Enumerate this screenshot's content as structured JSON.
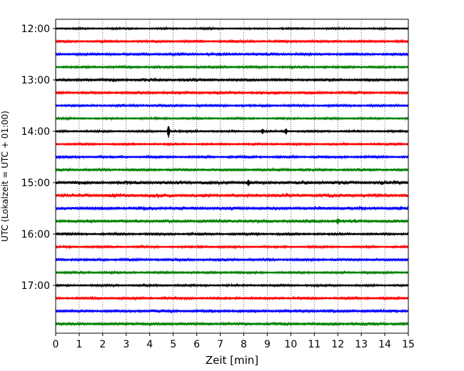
{
  "chart_data": {
    "type": "line",
    "title": "",
    "xlabel": "Zeit  [min]",
    "ylabel": "UTC (Lokalzeit = UTC + 01:00)",
    "xlim": [
      0,
      15
    ],
    "x_ticks": [
      "0",
      "1",
      "2",
      "3",
      "4",
      "5",
      "6",
      "7",
      "8",
      "9",
      "10",
      "11",
      "12",
      "13",
      "14",
      "15"
    ],
    "grid": "vertical dotted at each minute",
    "trace_interval_min": 15,
    "y_tick_labels": [
      "12:00",
      "13:00",
      "14:00",
      "15:00",
      "16:00",
      "17:00"
    ],
    "trace_colors": [
      "#000000",
      "#ff0000",
      "#0000ff",
      "#008000"
    ],
    "traces": [
      {
        "start": "12:00",
        "color": "#000000",
        "amplitude": 0.3
      },
      {
        "start": "12:15",
        "color": "#ff0000",
        "amplitude": 0.4
      },
      {
        "start": "12:30",
        "color": "#0000ff",
        "amplitude": 0.45
      },
      {
        "start": "12:45",
        "color": "#008000",
        "amplitude": 0.4
      },
      {
        "start": "13:00",
        "color": "#000000",
        "amplitude": 0.5
      },
      {
        "start": "13:15",
        "color": "#ff0000",
        "amplitude": 0.45
      },
      {
        "start": "13:30",
        "color": "#0000ff",
        "amplitude": 0.4
      },
      {
        "start": "13:45",
        "color": "#008000",
        "amplitude": 0.35
      },
      {
        "start": "14:00",
        "color": "#000000",
        "amplitude": 0.35,
        "events": [
          {
            "t": 4.8,
            "a": 2.2
          },
          {
            "t": 8.8,
            "a": 1.0
          },
          {
            "t": 9.8,
            "a": 1.1
          }
        ]
      },
      {
        "start": "14:15",
        "color": "#ff0000",
        "amplitude": 0.35
      },
      {
        "start": "14:30",
        "color": "#0000ff",
        "amplitude": 0.4
      },
      {
        "start": "14:45",
        "color": "#008000",
        "amplitude": 0.45
      },
      {
        "start": "15:00",
        "color": "#000000",
        "amplitude": 0.6,
        "events": [
          {
            "t": 8.2,
            "a": 1.2
          }
        ]
      },
      {
        "start": "15:15",
        "color": "#ff0000",
        "amplitude": 0.6
      },
      {
        "start": "15:30",
        "color": "#0000ff",
        "amplitude": 0.55
      },
      {
        "start": "15:45",
        "color": "#008000",
        "amplitude": 0.55,
        "events": [
          {
            "t": 12.0,
            "a": 1.1
          }
        ]
      },
      {
        "start": "16:00",
        "color": "#000000",
        "amplitude": 0.4
      },
      {
        "start": "16:15",
        "color": "#ff0000",
        "amplitude": 0.35
      },
      {
        "start": "16:30",
        "color": "#0000ff",
        "amplitude": 0.45
      },
      {
        "start": "16:45",
        "color": "#008000",
        "amplitude": 0.4
      },
      {
        "start": "17:00",
        "color": "#000000",
        "amplitude": 0.35
      },
      {
        "start": "17:15",
        "color": "#ff0000",
        "amplitude": 0.4
      },
      {
        "start": "17:30",
        "color": "#0000ff",
        "amplitude": 0.5
      },
      {
        "start": "17:45",
        "color": "#008000",
        "amplitude": 0.5
      }
    ]
  }
}
